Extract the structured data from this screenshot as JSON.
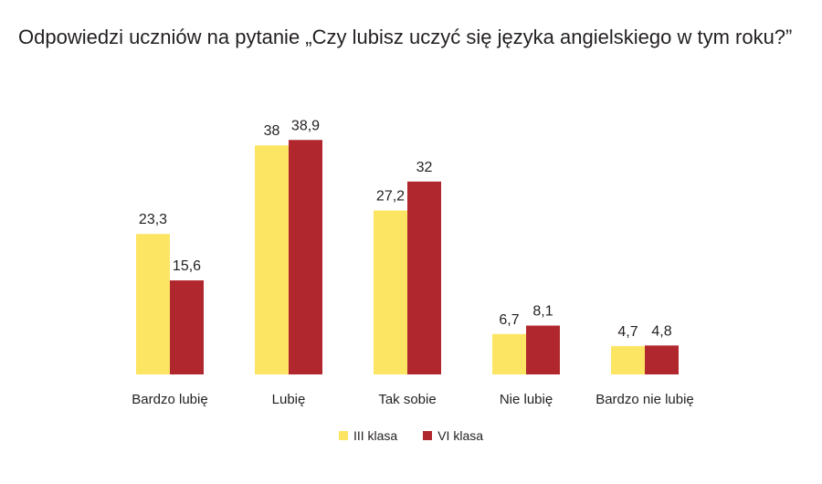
{
  "chart_data": {
    "type": "bar",
    "title": "Odpowiedzi uczniów na pytanie „Czy lubisz uczyć się języka angielskiego w tym roku?”",
    "categories": [
      "Bardzo lubię",
      "Lubię",
      "Tak sobie",
      "Nie lubię",
      "Bardzo nie lubię"
    ],
    "series": [
      {
        "name": "III klasa",
        "color": "#fde564",
        "values": [
          23.3,
          38,
          27.2,
          6.7,
          4.7
        ],
        "labels": [
          "23,3",
          "38",
          "27,2",
          "6,7",
          "4,7"
        ]
      },
      {
        "name": "VI klasa",
        "color": "#b0282e",
        "values": [
          15.6,
          38.9,
          32,
          8.1,
          4.8
        ],
        "labels": [
          "15,6",
          "38,9",
          "32",
          "8,1",
          "4,8"
        ]
      }
    ],
    "xlabel": "",
    "ylabel": "",
    "ylim": [
      0,
      40
    ],
    "grid": false,
    "legend_position": "bottom"
  }
}
